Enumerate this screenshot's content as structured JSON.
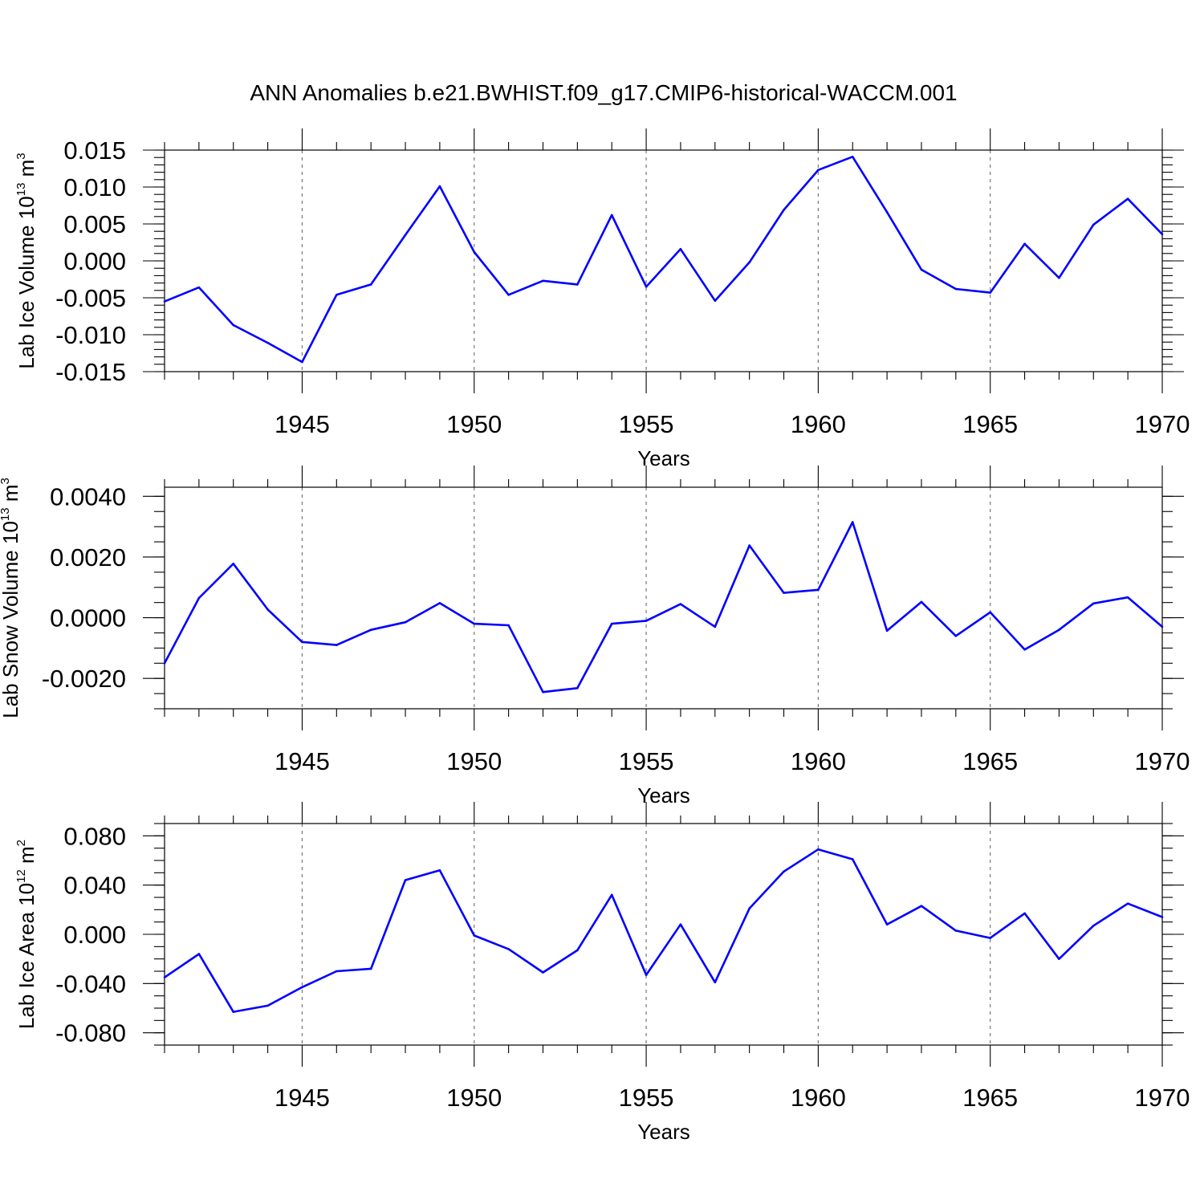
{
  "title": "ANN Anomalies b.e21.BWHIST.f09_g17.CMIP6-historical-WACCM.001",
  "colors": {
    "line": "#0000ff",
    "grid": "#777777"
  },
  "chart_data": [
    {
      "type": "line",
      "ylabel": {
        "text": "Lab Ice Volume 10",
        "sup1": "13",
        "mid": " m",
        "sup2": "3"
      },
      "xlabel": "Years",
      "xlim": [
        1941,
        1970
      ],
      "ylim": [
        -0.015,
        0.015
      ],
      "xticks": [
        1945,
        1950,
        1955,
        1960,
        1965,
        1970
      ],
      "xtick_labels": [
        "1945",
        "1950",
        "1955",
        "1960",
        "1965",
        "1970"
      ],
      "yticks": [
        -0.015,
        -0.01,
        -0.005,
        0,
        0.005,
        0.01,
        0.015
      ],
      "ytick_labels": [
        "-0.015",
        "-0.010",
        "-0.005",
        "0.000",
        "0.005",
        "0.010",
        "0.015"
      ],
      "yminor_step": 0.001,
      "grid": "dashed vertical at major x ticks",
      "x": [
        1941,
        1942,
        1943,
        1944,
        1945,
        1946,
        1947,
        1948,
        1949,
        1950,
        1951,
        1952,
        1953,
        1954,
        1955,
        1956,
        1957,
        1958,
        1959,
        1960,
        1961,
        1962,
        1963,
        1964,
        1965,
        1966,
        1967,
        1968,
        1969,
        1970
      ],
      "y": [
        -0.0055,
        -0.0036,
        -0.0087,
        -0.0111,
        -0.0137,
        -0.0046,
        -0.0032,
        0.0035,
        0.0101,
        0.0012,
        -0.0046,
        -0.0027,
        -0.0032,
        0.0062,
        -0.0035,
        0.0016,
        -0.0054,
        -0.0002,
        0.0069,
        0.0123,
        0.0141,
        0.0066,
        -0.0012,
        -0.0038,
        -0.0043,
        0.0023,
        -0.0023,
        0.0049,
        0.0084,
        0.0036
      ]
    },
    {
      "type": "line",
      "ylabel": {
        "text": "Lab Snow Volume 10",
        "sup1": "13",
        "mid": " m",
        "sup2": "3"
      },
      "xlabel": "Years",
      "xlim": [
        1941,
        1970
      ],
      "ylim": [
        -0.003,
        0.0043
      ],
      "xticks": [
        1945,
        1950,
        1955,
        1960,
        1965,
        1970
      ],
      "xtick_labels": [
        "1945",
        "1950",
        "1955",
        "1960",
        "1965",
        "1970"
      ],
      "yticks": [
        -0.002,
        0,
        0.002,
        0.004
      ],
      "ytick_labels": [
        "-0.0020",
        "0.0000",
        "0.0020",
        "0.0040"
      ],
      "yminor_step": 0.0005,
      "grid": "dashed vertical at major x ticks",
      "x": [
        1941,
        1942,
        1943,
        1944,
        1945,
        1946,
        1947,
        1948,
        1949,
        1950,
        1951,
        1952,
        1953,
        1954,
        1955,
        1956,
        1957,
        1958,
        1959,
        1960,
        1961,
        1962,
        1963,
        1964,
        1965,
        1966,
        1967,
        1968,
        1969,
        1970
      ],
      "y": [
        -0.0015,
        0.00065,
        0.00178,
        0.00027,
        -0.0008,
        -0.0009,
        -0.0004,
        -0.00015,
        0.00048,
        -0.0002,
        -0.00025,
        -0.00245,
        -0.00232,
        -0.0002,
        -0.0001,
        0.00045,
        -0.0003,
        0.00238,
        0.00082,
        0.00092,
        0.00315,
        -0.00043,
        0.00052,
        -0.0006,
        0.00018,
        -0.00105,
        -0.0004,
        0.00047,
        0.00067,
        -0.0003
      ]
    },
    {
      "type": "line",
      "ylabel": {
        "text": "Lab Ice Area 10",
        "sup1": "12",
        "mid": " m",
        "sup2": "2"
      },
      "xlabel": "Years",
      "xlim": [
        1941,
        1970
      ],
      "ylim": [
        -0.09,
        0.09
      ],
      "xticks": [
        1945,
        1950,
        1955,
        1960,
        1965,
        1970
      ],
      "xtick_labels": [
        "1945",
        "1950",
        "1955",
        "1960",
        "1965",
        "1970"
      ],
      "yticks": [
        -0.08,
        -0.04,
        0,
        0.04,
        0.08
      ],
      "ytick_labels": [
        "-0.080",
        "-0.040",
        "0.000",
        "0.040",
        "0.080"
      ],
      "yminor_step": 0.01,
      "grid": "dashed vertical at major x ticks",
      "x": [
        1941,
        1942,
        1943,
        1944,
        1945,
        1946,
        1947,
        1948,
        1949,
        1950,
        1951,
        1952,
        1953,
        1954,
        1955,
        1956,
        1957,
        1958,
        1959,
        1960,
        1961,
        1962,
        1963,
        1964,
        1965,
        1966,
        1967,
        1968,
        1969,
        1970
      ],
      "y": [
        -0.035,
        -0.016,
        -0.063,
        -0.058,
        -0.043,
        -0.03,
        -0.028,
        0.044,
        0.052,
        -0.001,
        -0.012,
        -0.031,
        -0.013,
        0.032,
        -0.033,
        0.008,
        -0.039,
        0.021,
        0.051,
        0.069,
        0.061,
        0.008,
        0.023,
        0.003,
        -0.003,
        0.017,
        -0.02,
        0.007,
        0.025,
        0.014
      ]
    }
  ]
}
